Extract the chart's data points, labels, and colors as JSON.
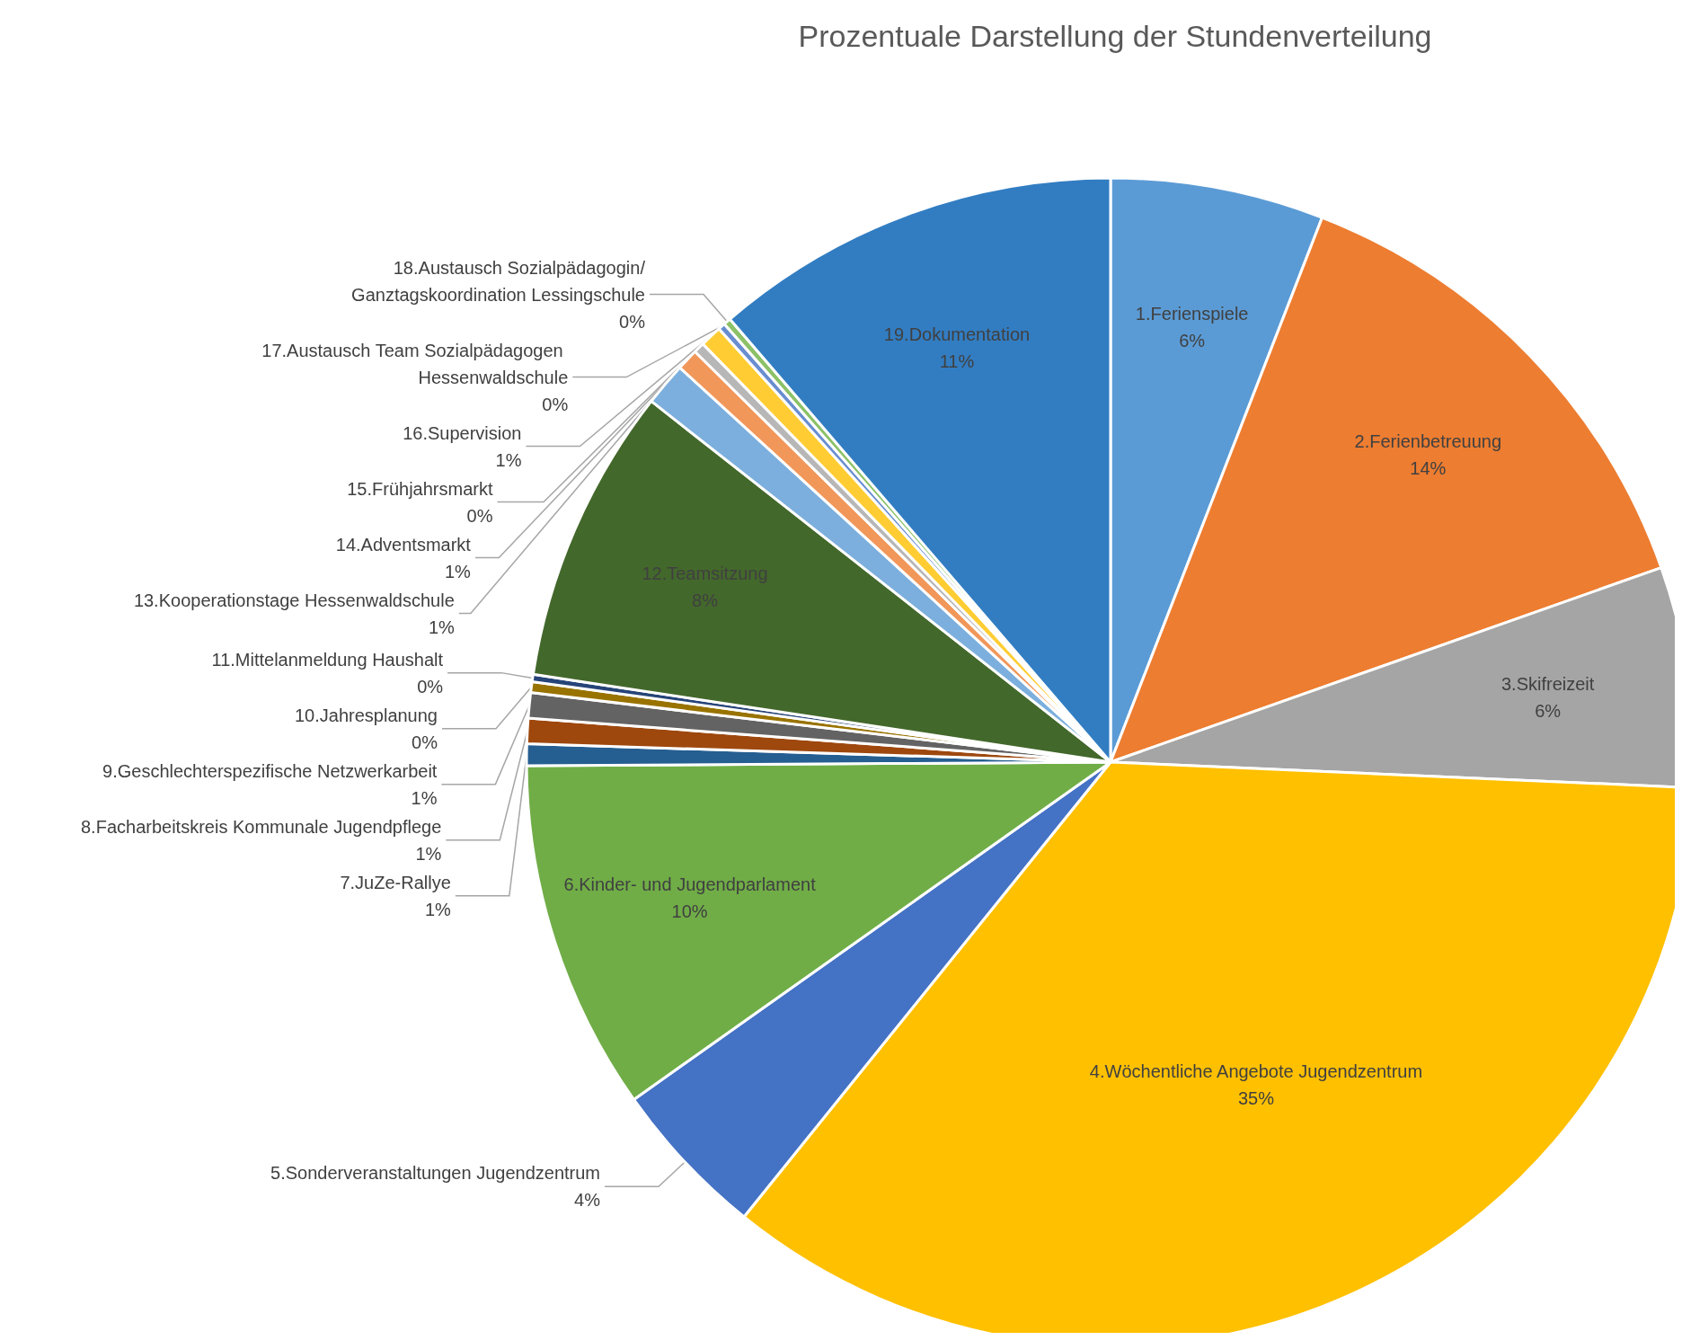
{
  "chart_data": {
    "type": "pie",
    "title": "Prozentuale Darstellung der Stundenverteilung",
    "categories": [
      "1.Ferienspiele",
      "2.Ferienbetreuung",
      "3.Skifreizeit",
      "4.Wöchentliche Angebote Jugendzentrum",
      "5.Sonderveranstaltungen Jugendzentrum",
      "6.Kinder- und Jugendparlament",
      "7.JuZe-Rallye",
      "8.Facharbeitskreis Kommunale Jugendpflege",
      "9.Geschlechterspezifische Netzwerkarbeit",
      "10.Jahresplanung",
      "11.Mittelanmeldung Haushalt",
      "12.Teamsitzung",
      "13.Kooperationstage Hessenwaldschule",
      "14.Adventsmarkt",
      "15.Frühjahrsmarkt",
      "16.Supervision",
      "17.Austausch Team Sozialpädagogen Hessenwaldschule",
      "18.Austausch Sozialpädagogin/Ganztagskoordination Lessingschule",
      "19.Dokumentation"
    ],
    "values": [
      5.9,
      13.7,
      6.1,
      35.1,
      4.4,
      9.7,
      0.6,
      0.7,
      0.7,
      0.3,
      0.2,
      8.2,
      1.2,
      0.6,
      0.3,
      0.6,
      0.2,
      0.2,
      11.3
    ],
    "value_labels": [
      "6%",
      "14%",
      "6%",
      "35%",
      "4%",
      "10%",
      "1%",
      "1%",
      "1%",
      "0%",
      "0%",
      "8%",
      "1%",
      "1%",
      "0%",
      "1%",
      "0%",
      "0%",
      "11%"
    ],
    "colors": [
      "#5b9bd5",
      "#ed7d31",
      "#a5a5a5",
      "#ffc000",
      "#4472c4",
      "#70ad47",
      "#255e91",
      "#9e480e",
      "#636363",
      "#997300",
      "#264478",
      "#43682b",
      "#7cafdd",
      "#f1975a",
      "#b7b7b7",
      "#ffcd33",
      "#698ed0",
      "#8cc168",
      "#327dc2"
    ],
    "legend": false
  }
}
